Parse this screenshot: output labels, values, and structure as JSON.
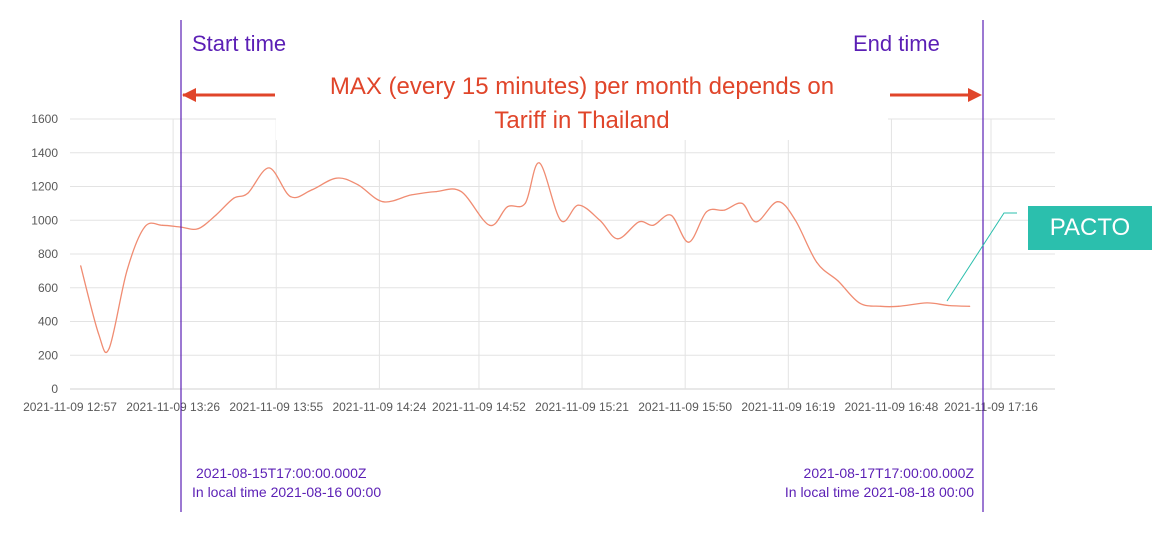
{
  "chart_data": {
    "type": "line",
    "title": "",
    "xlabel": "",
    "ylabel": "",
    "ylim": [
      0,
      1600
    ],
    "yticks": [
      0,
      200,
      400,
      600,
      800,
      1000,
      1200,
      1400,
      1600
    ],
    "xlim_minutes_from_first_tick": [
      0,
      277
    ],
    "categories": [
      "2021-11-09 12:57",
      "2021-11-09 13:26",
      "2021-11-09 13:55",
      "2021-11-09 14:24",
      "2021-11-09 14:52",
      "2021-11-09 15:21",
      "2021-11-09 15:50",
      "2021-11-09 16:19",
      "2021-11-09 16:48",
      "2021-11-09 17:16"
    ],
    "grid": true,
    "series": [
      {
        "name": "",
        "color": "#f08c72",
        "points": [
          [
            "2021-11-09 13:00",
            730
          ],
          [
            "2021-11-09 13:05",
            330
          ],
          [
            "2021-11-09 13:08",
            240
          ],
          [
            "2021-11-09 13:13",
            700
          ],
          [
            "2021-11-09 13:18",
            960
          ],
          [
            "2021-11-09 13:23",
            970
          ],
          [
            "2021-11-09 13:28",
            960
          ],
          [
            "2021-11-09 13:33",
            950
          ],
          [
            "2021-11-09 13:38",
            1030
          ],
          [
            "2021-11-09 13:43",
            1130
          ],
          [
            "2021-11-09 13:47",
            1160
          ],
          [
            "2021-11-09 13:53",
            1310
          ],
          [
            "2021-11-09 13:59",
            1140
          ],
          [
            "2021-11-09 14:05",
            1180
          ],
          [
            "2021-11-09 14:12",
            1250
          ],
          [
            "2021-11-09 14:18",
            1210
          ],
          [
            "2021-11-09 14:25",
            1110
          ],
          [
            "2021-11-09 14:33",
            1150
          ],
          [
            "2021-11-09 14:40",
            1170
          ],
          [
            "2021-11-09 14:47",
            1170
          ],
          [
            "2021-11-09 14:55",
            970
          ],
          [
            "2021-11-09 15:00",
            1080
          ],
          [
            "2021-11-09 15:05",
            1100
          ],
          [
            "2021-11-09 15:09",
            1340
          ],
          [
            "2021-11-09 15:15",
            1000
          ],
          [
            "2021-11-09 15:20",
            1090
          ],
          [
            "2021-11-09 15:26",
            1000
          ],
          [
            "2021-11-09 15:31",
            890
          ],
          [
            "2021-11-09 15:37",
            990
          ],
          [
            "2021-11-09 15:41",
            970
          ],
          [
            "2021-11-09 15:46",
            1030
          ],
          [
            "2021-11-09 15:51",
            870
          ],
          [
            "2021-11-09 15:56",
            1050
          ],
          [
            "2021-11-09 16:01",
            1060
          ],
          [
            "2021-11-09 16:06",
            1100
          ],
          [
            "2021-11-09 16:10",
            990
          ],
          [
            "2021-11-09 16:16",
            1110
          ],
          [
            "2021-11-09 16:21",
            1000
          ],
          [
            "2021-11-09 16:27",
            750
          ],
          [
            "2021-11-09 16:33",
            640
          ],
          [
            "2021-11-09 16:39",
            510
          ],
          [
            "2021-11-09 16:45",
            490
          ],
          [
            "2021-11-09 16:50",
            490
          ],
          [
            "2021-11-09 16:58",
            510
          ],
          [
            "2021-11-09 17:04",
            495
          ],
          [
            "2021-11-09 17:10",
            490
          ]
        ]
      }
    ]
  },
  "markers": {
    "start_label": "Start time",
    "end_label": "End time",
    "start_time_utc": "2021-08-15T17:00:00.000Z",
    "start_time_local": "In local time 2021-08-16 00:00",
    "end_time_utc": "2021-08-17T17:00:00.000Z",
    "end_time_local": "In local time 2021-08-18 00:00",
    "marker_color": "#5b1fb5"
  },
  "annotation": {
    "line1": "MAX (every 15 minutes) per month depends on",
    "line2": "Tariff in Thailand",
    "color": "#e0452a"
  },
  "callout": {
    "label": "PACTO",
    "color": "#2bbfad"
  }
}
